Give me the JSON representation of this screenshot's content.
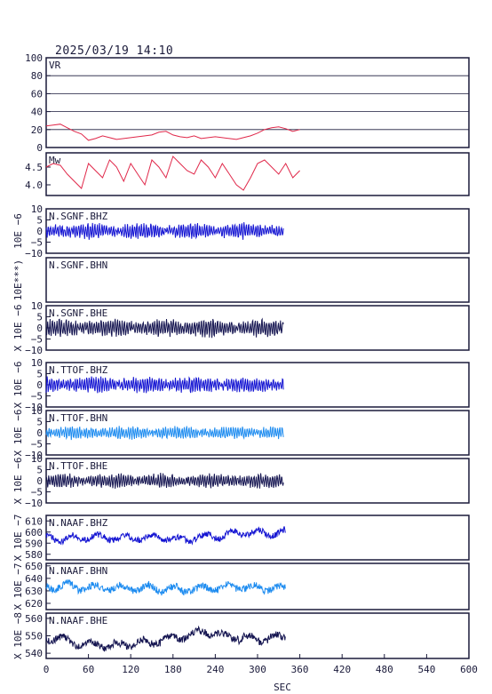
{
  "header": {
    "timestamp": "2025/03/19  14:10"
  },
  "chart_data": {
    "type": "line",
    "x_axis": {
      "label": "SEC",
      "range": [
        0,
        600
      ],
      "ticks": [
        0,
        60,
        120,
        180,
        240,
        300,
        360,
        420,
        480,
        540,
        600
      ]
    },
    "panels": [
      {
        "name": "VR-panel",
        "label": "VR",
        "color": "#e0284a",
        "ylim": [
          0,
          100
        ],
        "yticks": [
          "0",
          "20",
          "40",
          "60",
          "80",
          "100"
        ],
        "ytick_values": [
          0,
          20,
          40,
          60,
          80,
          100
        ],
        "grid": true,
        "ylabel": "",
        "x_end": 360,
        "series": {
          "x": [
            0,
            10,
            20,
            30,
            40,
            50,
            60,
            70,
            80,
            90,
            100,
            110,
            120,
            130,
            140,
            150,
            160,
            170,
            180,
            190,
            200,
            210,
            220,
            230,
            240,
            250,
            260,
            270,
            280,
            290,
            300,
            310,
            320,
            330,
            340,
            350,
            360
          ],
          "y": [
            24,
            25,
            26,
            22,
            18,
            15,
            8,
            10,
            13,
            11,
            9,
            10,
            11,
            12,
            13,
            14,
            17,
            18,
            14,
            12,
            11,
            13,
            10,
            11,
            12,
            11,
            10,
            9,
            11,
            13,
            16,
            20,
            22,
            23,
            21,
            18,
            20
          ]
        }
      },
      {
        "name": "Mw-panel",
        "label": "Mw",
        "color": "#e0284a",
        "ylim": [
          3.7,
          4.9
        ],
        "yticks": [
          "4.0",
          "4.5"
        ],
        "ytick_values": [
          4.0,
          4.5
        ],
        "grid": false,
        "ylabel": "",
        "x_end": 360,
        "series": {
          "x": [
            0,
            10,
            20,
            30,
            40,
            50,
            60,
            70,
            80,
            90,
            100,
            110,
            120,
            130,
            140,
            150,
            160,
            170,
            180,
            190,
            200,
            210,
            220,
            230,
            240,
            250,
            260,
            270,
            280,
            290,
            300,
            310,
            320,
            330,
            340,
            350,
            360
          ],
          "y": [
            4.5,
            4.6,
            4.55,
            4.3,
            4.1,
            3.9,
            4.6,
            4.4,
            4.2,
            4.7,
            4.5,
            4.1,
            4.6,
            4.3,
            4.0,
            4.7,
            4.5,
            4.2,
            4.8,
            4.6,
            4.4,
            4.3,
            4.7,
            4.5,
            4.2,
            4.6,
            4.3,
            4.0,
            3.85,
            4.2,
            4.6,
            4.7,
            4.5,
            4.3,
            4.6,
            4.2,
            4.4
          ]
        }
      },
      {
        "name": "sgnf-bhz-panel",
        "label": "N.SGNF.BHZ",
        "color": "#1414d2",
        "ylim": [
          -10,
          10
        ],
        "yticks": [
          "10",
          "5",
          "0",
          "−5",
          "−10"
        ],
        "ytick_values": [
          10,
          5,
          0,
          -5,
          -10
        ],
        "grid": false,
        "ylabel": "10E −6",
        "amp": 2.5,
        "x_end": 337
      },
      {
        "name": "sgnf-bhn-panel",
        "label": "N.SGNF.BHN",
        "color": "#1414d2",
        "ylim": [
          -10,
          10
        ],
        "yticks": [],
        "ytick_values": [],
        "grid": false,
        "ylabel": "10E***)",
        "amp": 0,
        "x_end": 0
      },
      {
        "name": "sgnf-bhe-panel",
        "label": "N.SGNF.BHE",
        "color": "#141450",
        "ylim": [
          -10,
          10
        ],
        "yticks": [
          "10",
          "5",
          "0",
          "−5",
          "−10"
        ],
        "ytick_values": [
          10,
          5,
          0,
          -5,
          -10
        ],
        "grid": false,
        "ylabel": "X 10E −6",
        "amp": 2.8,
        "x_end": 337
      },
      {
        "name": "ttof-bhz-panel",
        "label": "N.TTOF.BHZ",
        "color": "#1414d2",
        "ylim": [
          -10,
          10
        ],
        "yticks": [
          "10",
          "5",
          "0",
          "−5",
          "−10"
        ],
        "ytick_values": [
          10,
          5,
          0,
          -5,
          -10
        ],
        "grid": false,
        "ylabel": "X 10E −6",
        "amp": 2.5,
        "x_end": 337
      },
      {
        "name": "ttof-bhn-panel",
        "label": "N.TTOF.BHN",
        "color": "#1e8cf0",
        "ylim": [
          -10,
          10
        ],
        "yticks": [
          "10",
          "5",
          "0",
          "−5",
          "−10"
        ],
        "ytick_values": [
          10,
          5,
          0,
          -5,
          -10
        ],
        "grid": false,
        "ylabel": "X 10E −6",
        "amp": 2.0,
        "x_end": 337
      },
      {
        "name": "ttof-bhe-panel",
        "label": "N.TTOF.BHE",
        "color": "#141450",
        "ylim": [
          -10,
          10
        ],
        "yticks": [
          "10",
          "5",
          "0",
          "−5",
          "−10"
        ],
        "ytick_values": [
          10,
          5,
          0,
          -5,
          -10
        ],
        "grid": false,
        "ylabel": "X 10E −6",
        "amp": 2.2,
        "x_end": 337
      },
      {
        "name": "naaf-bhz-panel",
        "label": "N.NAAF.BHZ",
        "color": "#1414d2",
        "ylim": [
          575,
          615
        ],
        "yticks": [
          "610",
          "600",
          "590",
          "580"
        ],
        "ytick_values": [
          610,
          600,
          590,
          580
        ],
        "grid": false,
        "ylabel": "X 10E −7",
        "base": 595,
        "amp": 7,
        "x_end": 340
      },
      {
        "name": "naaf-bhn-panel",
        "label": "N.NAAF.BHN",
        "color": "#1e8cf0",
        "ylim": [
          615,
          652
        ],
        "yticks": [
          "650",
          "640",
          "630",
          "620"
        ],
        "ytick_values": [
          650,
          640,
          630,
          620
        ],
        "grid": false,
        "ylabel": "X 10E −7",
        "base": 633,
        "amp": 7,
        "x_end": 340
      },
      {
        "name": "naaf-bhe-panel",
        "label": "N.NAAF.BHE",
        "color": "#141450",
        "ylim": [
          537,
          563
        ],
        "yticks": [
          "560",
          "550",
          "540"
        ],
        "ytick_values": [
          560,
          550,
          540
        ],
        "grid": false,
        "ylabel": "X 10E −8",
        "base": 549,
        "amp": 5,
        "x_end": 340
      }
    ]
  }
}
